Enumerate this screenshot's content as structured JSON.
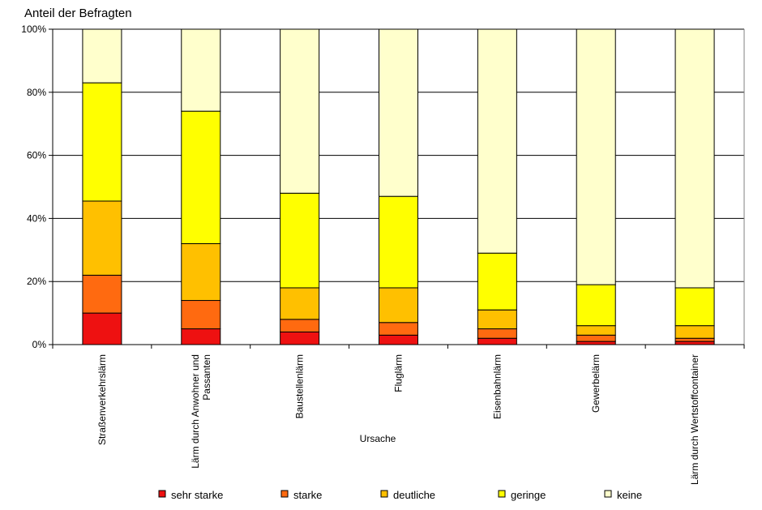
{
  "chart_data": {
    "type": "bar",
    "stacked": true,
    "title": "Anteil der Befragten",
    "xlabel": "Ursache",
    "ylabel": "Anteil der Befragten",
    "ylim": [
      0,
      100
    ],
    "yticks": [
      0,
      20,
      40,
      60,
      80,
      100
    ],
    "ytick_labels": [
      "0%",
      "20%",
      "40%",
      "60%",
      "80%",
      "100%"
    ],
    "grid": true,
    "legend_position": "bottom",
    "categories": [
      [
        "Straßenverkehrslärm"
      ],
      [
        "Lärm durch Anwohner und",
        "Passanten"
      ],
      [
        "Baustellenlärm"
      ],
      [
        "Fluglärm"
      ],
      [
        "Eisenbahnlärm"
      ],
      [
        "Gewerbelärm"
      ],
      [
        "Lärm durch Wertstoffcontainer"
      ]
    ],
    "series": [
      {
        "name": "sehr starke",
        "color": "#ee1111",
        "values": [
          10,
          5,
          4,
          3,
          2,
          1,
          1
        ]
      },
      {
        "name": "starke",
        "color": "#ff6a10",
        "values": [
          12,
          9,
          4,
          4,
          3,
          2,
          1
        ]
      },
      {
        "name": "deutliche",
        "color": "#ffc000",
        "values": [
          23.5,
          18,
          10,
          11,
          6,
          3,
          4
        ]
      },
      {
        "name": "geringe",
        "color": "#ffff00",
        "values": [
          37.5,
          42,
          30,
          29,
          18,
          13,
          12
        ]
      },
      {
        "name": "keine",
        "color": "#ffffcc",
        "values": [
          17,
          26,
          52,
          53,
          71,
          81,
          82
        ]
      }
    ]
  }
}
